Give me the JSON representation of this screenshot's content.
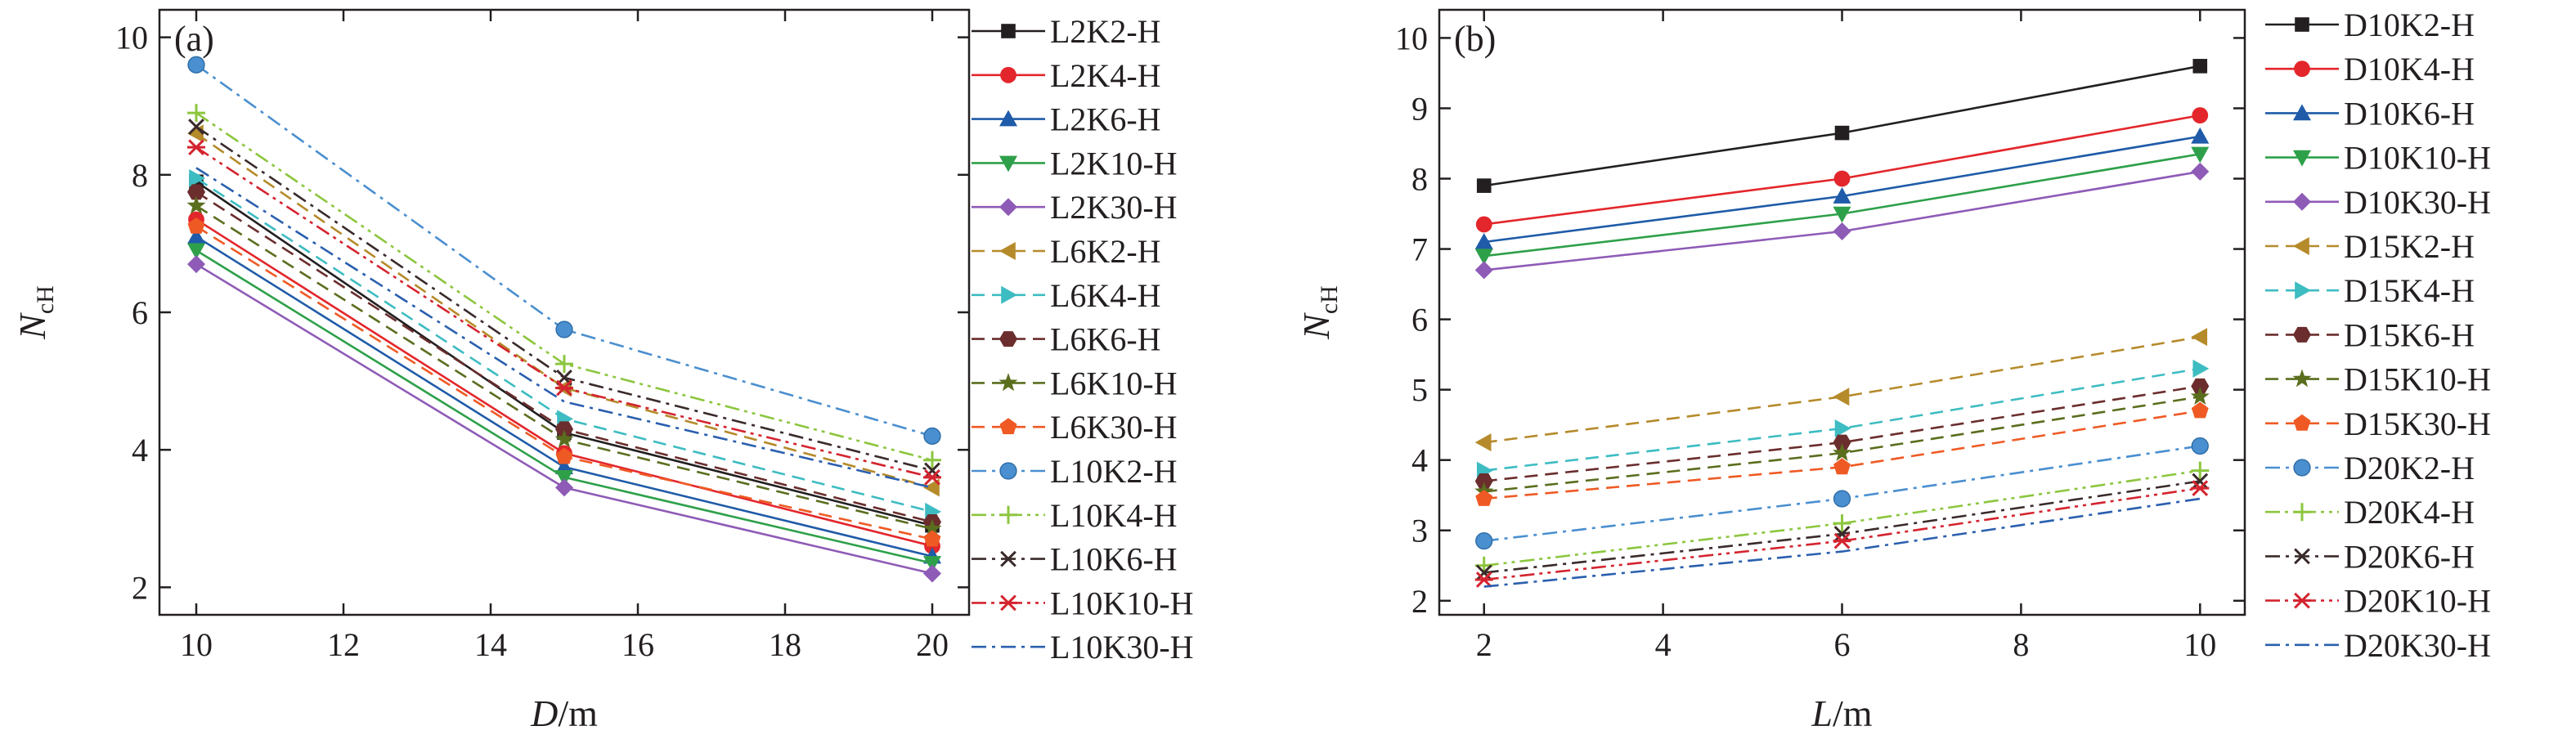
{
  "chart_data": [
    {
      "type": "line",
      "panel_label": "(a)",
      "xlabel": {
        "italic": "D",
        "rest": "/m"
      },
      "ylabel": {
        "main": "N",
        "sub": "cH"
      },
      "xlim": [
        9.5,
        20.5
      ],
      "ylim": [
        1.6,
        10.4
      ],
      "xticks": [
        "10",
        "12",
        "14",
        "16",
        "18",
        "20"
      ],
      "xtick_values": [
        10,
        12,
        14,
        16,
        18,
        20
      ],
      "yticks": [
        "2",
        "4",
        "6",
        "8",
        "10"
      ],
      "ytick_values": [
        2,
        4,
        6,
        8,
        10
      ],
      "x": [
        10,
        15,
        20
      ],
      "series": [
        {
          "name": "L2K2-H",
          "color": "#231f20",
          "dash": "solid",
          "marker": "square",
          "values": [
            7.9,
            4.25,
            2.9
          ]
        },
        {
          "name": "L2K4-H",
          "color": "#e3262b",
          "dash": "solid",
          "marker": "circle",
          "values": [
            7.35,
            3.95,
            2.6
          ]
        },
        {
          "name": "L2K6-H",
          "color": "#1f5ba8",
          "dash": "solid",
          "marker": "triangle",
          "values": [
            7.1,
            3.75,
            2.45
          ]
        },
        {
          "name": "L2K10-H",
          "color": "#2ea04a",
          "dash": "solid",
          "marker": "tri-down",
          "values": [
            6.9,
            3.6,
            2.35
          ]
        },
        {
          "name": "L2K30-H",
          "color": "#8e5bb7",
          "dash": "solid",
          "marker": "diamond",
          "values": [
            6.7,
            3.45,
            2.2
          ]
        },
        {
          "name": "L6K2-H",
          "color": "#b58a2a",
          "dash": "dash",
          "marker": "tri-left",
          "values": [
            8.6,
            4.9,
            3.45
          ]
        },
        {
          "name": "L6K4-H",
          "color": "#3dbcc2",
          "dash": "dash",
          "marker": "tri-right",
          "values": [
            7.95,
            4.45,
            3.1
          ]
        },
        {
          "name": "L6K6-H",
          "color": "#6b2d2d",
          "dash": "dash",
          "marker": "hexagon",
          "values": [
            7.75,
            4.3,
            2.95
          ]
        },
        {
          "name": "L6K10-H",
          "color": "#5a6e1e",
          "dash": "dash",
          "marker": "star",
          "values": [
            7.55,
            4.15,
            2.85
          ]
        },
        {
          "name": "L6K30-H",
          "color": "#ef5a24",
          "dash": "dash",
          "marker": "pentagon",
          "values": [
            7.25,
            3.9,
            2.7
          ]
        },
        {
          "name": "L10K2-H",
          "color": "#4a8fcf",
          "dash": "dashdot",
          "marker": "ball",
          "values": [
            9.6,
            5.75,
            4.2
          ]
        },
        {
          "name": "L10K4-H",
          "color": "#8cc63e",
          "dash": "dashdotdot",
          "marker": "plus",
          "values": [
            8.9,
            5.25,
            3.85
          ]
        },
        {
          "name": "L10K6-H",
          "color": "#3a2a2a",
          "dash": "dashdot",
          "marker": "x",
          "values": [
            8.7,
            5.05,
            3.7
          ]
        },
        {
          "name": "L10K10-H",
          "color": "#d4242f",
          "dash": "dashdotdot",
          "marker": "asterisk",
          "values": [
            8.4,
            4.9,
            3.6
          ]
        },
        {
          "name": "L10K30-H",
          "color": "#2a5fae",
          "dash": "dashdot",
          "marker": "none",
          "values": [
            8.1,
            4.7,
            3.45
          ]
        }
      ]
    },
    {
      "type": "line",
      "panel_label": "(b)",
      "xlabel": {
        "italic": "L",
        "rest": "/m"
      },
      "ylabel": {
        "main": "N",
        "sub": "cH"
      },
      "xlim": [
        1.5,
        10.5
      ],
      "ylim": [
        1.8,
        10.4
      ],
      "xticks": [
        "2",
        "4",
        "6",
        "8",
        "10"
      ],
      "xtick_values": [
        2,
        4,
        6,
        8,
        10
      ],
      "yticks": [
        "2",
        "3",
        "4",
        "5",
        "6",
        "7",
        "8",
        "9",
        "10"
      ],
      "ytick_values": [
        2,
        3,
        4,
        5,
        6,
        7,
        8,
        9,
        10
      ],
      "x": [
        2,
        6,
        10
      ],
      "series": [
        {
          "name": "D10K2-H",
          "color": "#231f20",
          "dash": "solid",
          "marker": "square",
          "values": [
            7.9,
            8.65,
            9.6
          ]
        },
        {
          "name": "D10K4-H",
          "color": "#e3262b",
          "dash": "solid",
          "marker": "circle",
          "values": [
            7.35,
            8.0,
            8.9
          ]
        },
        {
          "name": "D10K6-H",
          "color": "#1f5ba8",
          "dash": "solid",
          "marker": "triangle",
          "values": [
            7.1,
            7.75,
            8.6
          ]
        },
        {
          "name": "D10K10-H",
          "color": "#2ea04a",
          "dash": "solid",
          "marker": "tri-down",
          "values": [
            6.9,
            7.5,
            8.35
          ]
        },
        {
          "name": "D10K30-H",
          "color": "#8e5bb7",
          "dash": "solid",
          "marker": "diamond",
          "values": [
            6.7,
            7.25,
            8.1
          ]
        },
        {
          "name": "D15K2-H",
          "color": "#b58a2a",
          "dash": "dash",
          "marker": "tri-left",
          "values": [
            4.25,
            4.9,
            5.75
          ]
        },
        {
          "name": "D15K4-H",
          "color": "#3dbcc2",
          "dash": "dash",
          "marker": "tri-right",
          "values": [
            3.85,
            4.45,
            5.3
          ]
        },
        {
          "name": "D15K6-H",
          "color": "#6b2d2d",
          "dash": "dash",
          "marker": "hexagon",
          "values": [
            3.7,
            4.25,
            5.05
          ]
        },
        {
          "name": "D15K10-H",
          "color": "#5a6e1e",
          "dash": "dash",
          "marker": "star",
          "values": [
            3.55,
            4.1,
            4.9
          ]
        },
        {
          "name": "D15K30-H",
          "color": "#ef5a24",
          "dash": "dash",
          "marker": "pentagon",
          "values": [
            3.45,
            3.9,
            4.7
          ]
        },
        {
          "name": "D20K2-H",
          "color": "#4a8fcf",
          "dash": "dashdot",
          "marker": "ball",
          "values": [
            2.85,
            3.45,
            4.2
          ]
        },
        {
          "name": "D20K4-H",
          "color": "#8cc63e",
          "dash": "dashdotdot",
          "marker": "plus",
          "values": [
            2.5,
            3.1,
            3.85
          ]
        },
        {
          "name": "D20K6-H",
          "color": "#3a2a2a",
          "dash": "dashdot",
          "marker": "x",
          "values": [
            2.4,
            2.95,
            3.7
          ]
        },
        {
          "name": "D20K10-H",
          "color": "#d4242f",
          "dash": "dashdotdot",
          "marker": "asterisk",
          "values": [
            2.3,
            2.85,
            3.6
          ]
        },
        {
          "name": "D20K30-H",
          "color": "#2a5fae",
          "dash": "dashdot",
          "marker": "none",
          "values": [
            2.2,
            2.7,
            3.45
          ]
        }
      ]
    }
  ]
}
